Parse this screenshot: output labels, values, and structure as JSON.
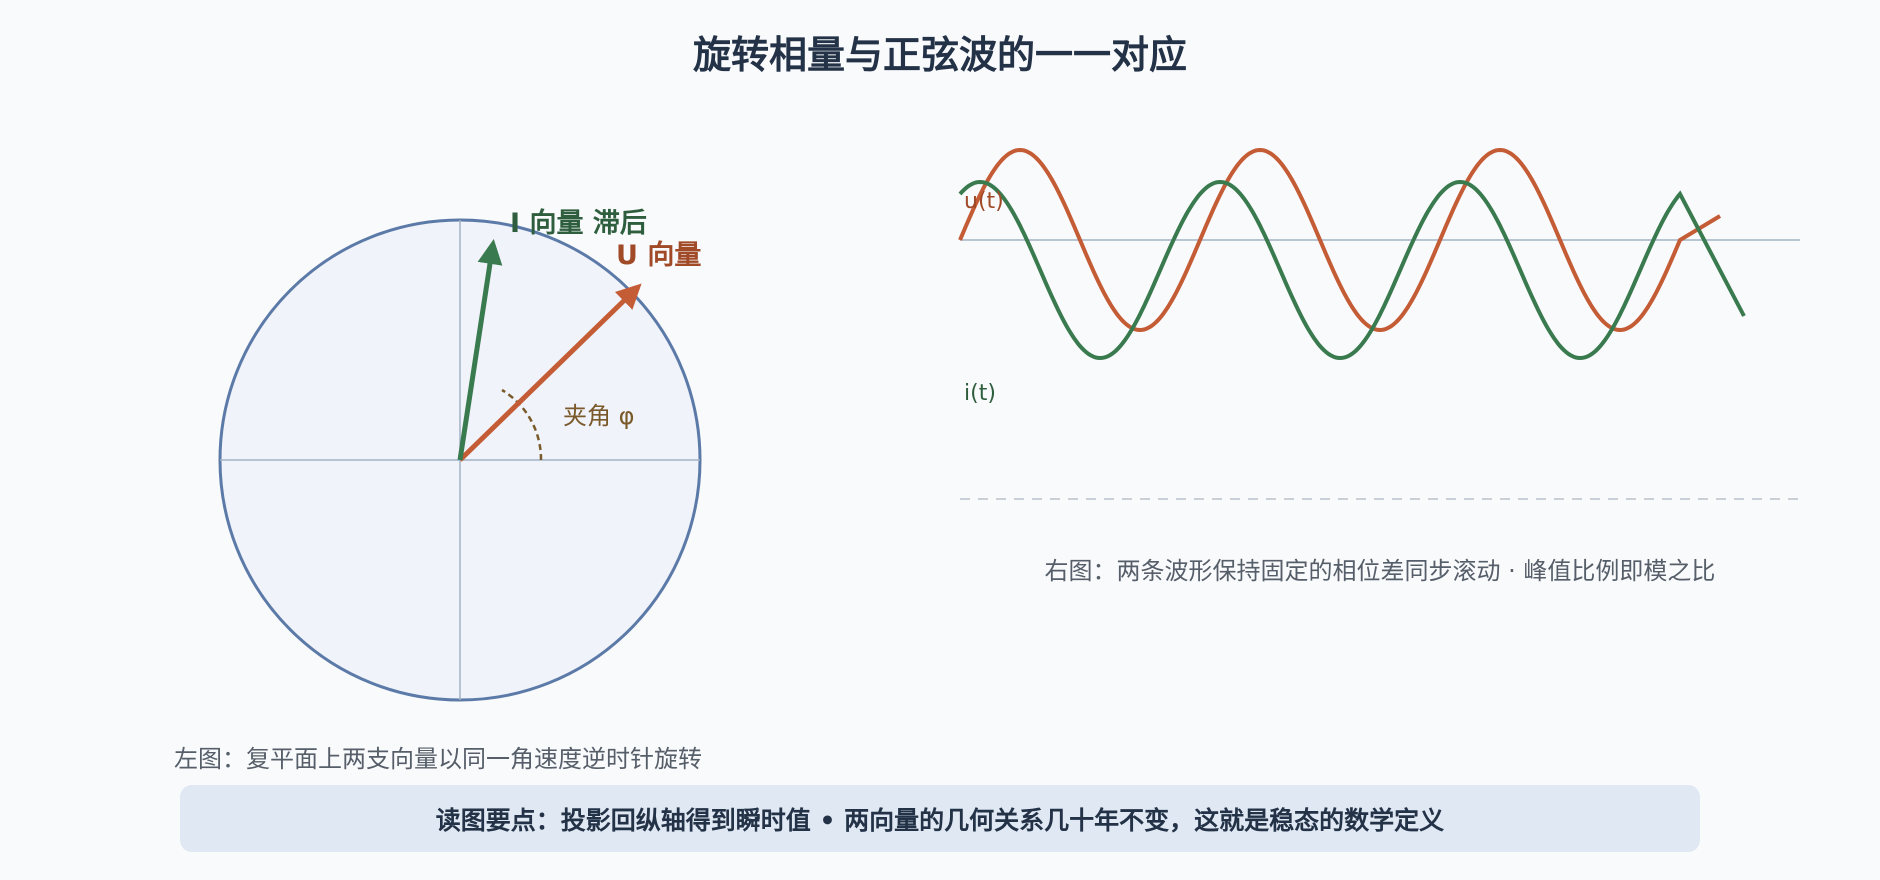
{
  "title": "旋转相量与正弦波的一一对应",
  "phasor": {
    "u_label": "U 向量",
    "i_label": "I 向量 滞后",
    "angle_label": "夹角 φ"
  },
  "waves": {
    "u_label": "u(t)",
    "i_label": "i(t)"
  },
  "captions": {
    "left": "左图：复平面上两支向量以同一角速度逆时针旋转",
    "right": "右图：两条波形保持固定的相位差同步滚动 · 峰值比例即模之比"
  },
  "banner": "读图要点：投影回纵轴得到瞬时值 • 两向量的几何关系几十年不变，这就是稳态的数学定义",
  "colors": {
    "u": "#c45c35",
    "i": "#3a7a4f",
    "circle": "#5b7aa8",
    "circle_fill": "#f0f3fa",
    "axis": "#9fb1c6",
    "angle": "#7a5a2a",
    "title": "#233247",
    "caption": "#555e69"
  }
}
